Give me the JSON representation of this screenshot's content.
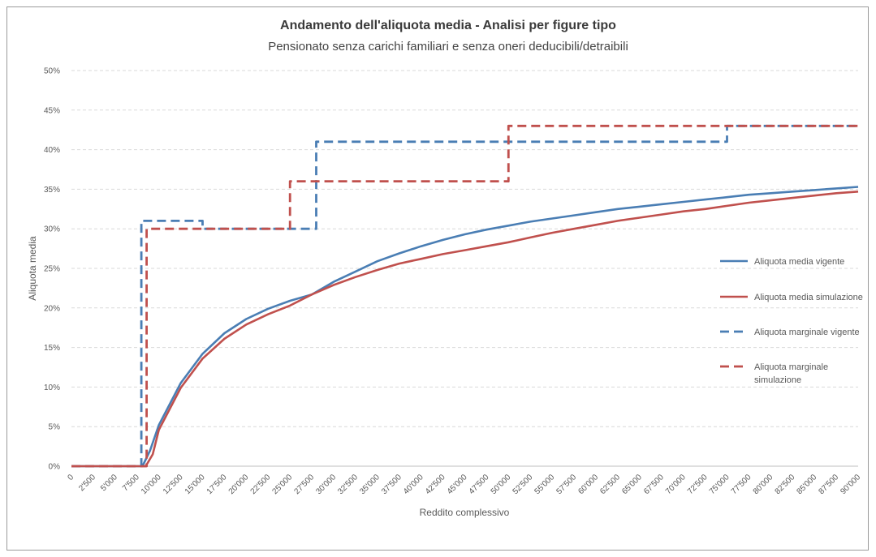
{
  "chart_data": {
    "type": "line",
    "title": "Andamento dell'aliquota media - Analisi per figure tipo",
    "subtitle": "Pensionato senza carichi familiari e senza oneri deducibili/detraibili",
    "xlabel": "Reddito complessivo",
    "ylabel": "Aliquota media",
    "xlim": [
      0,
      90000
    ],
    "ylim": [
      0,
      50
    ],
    "grid": true,
    "legend_position": "right",
    "x_ticks": [
      "0",
      "2'500",
      "5'000",
      "7'500",
      "10'000",
      "12'500",
      "15'000",
      "17'500",
      "20'000",
      "22'500",
      "25'000",
      "27'500",
      "30'000",
      "32'500",
      "35'000",
      "37'500",
      "40'000",
      "42'500",
      "45'000",
      "47'500",
      "50'000",
      "52'500",
      "55'000",
      "57'500",
      "60'000",
      "62'500",
      "65'000",
      "67'500",
      "70'000",
      "72'500",
      "75'000",
      "77'500",
      "80'000",
      "82'500",
      "85'000",
      "87'500",
      "90'000"
    ],
    "y_ticks": [
      "0%",
      "5%",
      "10%",
      "15%",
      "20%",
      "25%",
      "30%",
      "35%",
      "40%",
      "45%",
      "50%"
    ],
    "series": [
      {
        "name": "Aliquota media vigente",
        "color": "#4a7eb4",
        "style": "solid",
        "points": [
          [
            0,
            0
          ],
          [
            8125,
            0
          ],
          [
            9000,
            2
          ],
          [
            10000,
            5.2
          ],
          [
            12500,
            10.5
          ],
          [
            15000,
            14.2
          ],
          [
            17500,
            16.8
          ],
          [
            20000,
            18.6
          ],
          [
            22500,
            19.9
          ],
          [
            25000,
            20.9
          ],
          [
            27500,
            21.7
          ],
          [
            30000,
            23.3
          ],
          [
            32500,
            24.6
          ],
          [
            35000,
            25.9
          ],
          [
            37500,
            26.9
          ],
          [
            40000,
            27.8
          ],
          [
            42500,
            28.6
          ],
          [
            45000,
            29.3
          ],
          [
            47500,
            29.9
          ],
          [
            50000,
            30.4
          ],
          [
            52500,
            30.9
          ],
          [
            55000,
            31.3
          ],
          [
            57500,
            31.7
          ],
          [
            60000,
            32.1
          ],
          [
            62500,
            32.5
          ],
          [
            65000,
            32.8
          ],
          [
            67500,
            33.1
          ],
          [
            70000,
            33.4
          ],
          [
            72500,
            33.7
          ],
          [
            75000,
            34.0
          ],
          [
            77500,
            34.3
          ],
          [
            80000,
            34.5
          ],
          [
            82500,
            34.7
          ],
          [
            85000,
            34.9
          ],
          [
            87500,
            35.1
          ],
          [
            90000,
            35.3
          ]
        ]
      },
      {
        "name": "Aliquota media simulazione",
        "color": "#c0504d",
        "style": "solid",
        "points": [
          [
            0,
            0
          ],
          [
            8500,
            0
          ],
          [
            9300,
            1.5
          ],
          [
            10000,
            4.6
          ],
          [
            12500,
            9.9
          ],
          [
            15000,
            13.6
          ],
          [
            17500,
            16.1
          ],
          [
            20000,
            17.9
          ],
          [
            22500,
            19.2
          ],
          [
            25000,
            20.3
          ],
          [
            27500,
            21.7
          ],
          [
            30000,
            22.9
          ],
          [
            32500,
            23.9
          ],
          [
            35000,
            24.8
          ],
          [
            37500,
            25.6
          ],
          [
            40000,
            26.2
          ],
          [
            42500,
            26.8
          ],
          [
            45000,
            27.3
          ],
          [
            47500,
            27.8
          ],
          [
            50000,
            28.3
          ],
          [
            52500,
            28.9
          ],
          [
            55000,
            29.5
          ],
          [
            57500,
            30.0
          ],
          [
            60000,
            30.5
          ],
          [
            62500,
            31.0
          ],
          [
            65000,
            31.4
          ],
          [
            67500,
            31.8
          ],
          [
            70000,
            32.2
          ],
          [
            72500,
            32.5
          ],
          [
            75000,
            32.9
          ],
          [
            77500,
            33.3
          ],
          [
            80000,
            33.6
          ],
          [
            82500,
            33.9
          ],
          [
            85000,
            34.2
          ],
          [
            87500,
            34.5
          ],
          [
            90000,
            34.7
          ]
        ]
      },
      {
        "name": "Aliquota marginale vigente",
        "color": "#4a7eb4",
        "style": "dashed",
        "points": [
          [
            0,
            0
          ],
          [
            8000,
            0
          ],
          [
            8000,
            31
          ],
          [
            15000,
            31
          ],
          [
            15000,
            30
          ],
          [
            28000,
            30
          ],
          [
            28000,
            41
          ],
          [
            75000,
            41
          ],
          [
            75000,
            43
          ],
          [
            90000,
            43
          ]
        ]
      },
      {
        "name": "Aliquota marginale simulazione",
        "color": "#c0504d",
        "style": "dashed",
        "points": [
          [
            0,
            0
          ],
          [
            8600,
            0
          ],
          [
            8600,
            30
          ],
          [
            25000,
            30
          ],
          [
            25000,
            36
          ],
          [
            50000,
            36
          ],
          [
            50000,
            43
          ],
          [
            90000,
            43
          ]
        ]
      }
    ],
    "legend": [
      {
        "label": "Aliquota media vigente",
        "label_lines": [
          "Aliquota media vigente"
        ]
      },
      {
        "label": "Aliquota media simulazione",
        "label_lines": [
          "Aliquota media simulazione"
        ]
      },
      {
        "label": "Aliquota marginale vigente",
        "label_lines": [
          "Aliquota marginale vigente"
        ]
      },
      {
        "label": "Aliquota marginale simulazione",
        "label_lines": [
          "Aliquota marginale",
          "simulazione"
        ]
      }
    ]
  },
  "colors": {
    "grid": "#d9d9d9",
    "axis": "#bfbfbf",
    "frame": "#9a9a9a"
  }
}
